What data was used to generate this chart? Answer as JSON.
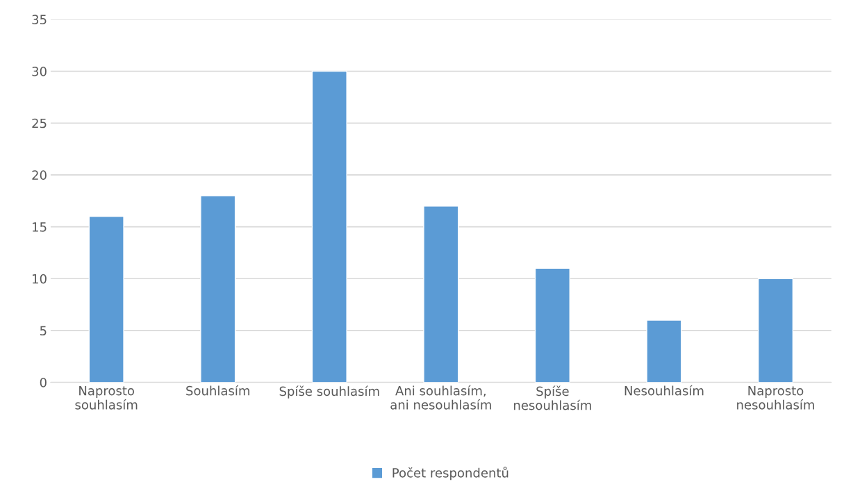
{
  "chart_data": {
    "type": "bar",
    "categories": [
      "Naprosto\nsouhlasím",
      "Souhlasím",
      "Spíše souhlasím",
      "Ani souhlasím,\nani nesouhlasím",
      "Spíše\nnesouhlasím",
      "Nesouhlasím",
      "Naprosto\nnesouhlasím"
    ],
    "series": [
      {
        "name": "Počet respondentů",
        "color": "#5b9bd5",
        "values": [
          16,
          18,
          30,
          17,
          11,
          6,
          10
        ]
      }
    ],
    "ylim": [
      0,
      35
    ],
    "yticks": [
      0,
      5,
      10,
      15,
      20,
      25,
      30,
      35
    ],
    "grid": "y",
    "legend": "bottom"
  }
}
